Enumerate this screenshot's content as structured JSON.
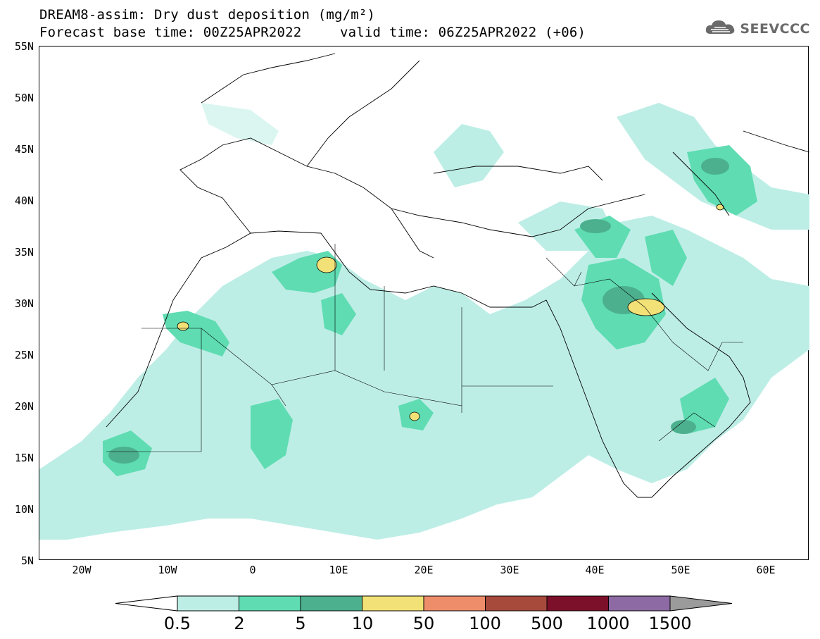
{
  "header": {
    "title_line1": "DREAM8-assim: Dry dust deposition (mg/m²)",
    "title_line2": "Forecast base time: 00Z25APR2022",
    "title_line3": "valid time: 06Z25APR2022 (+06)",
    "logo_text": "SEEVCCC",
    "logo_icon": "cloud-icon"
  },
  "axes": {
    "lat_labels": [
      "55N",
      "50N",
      "45N",
      "40N",
      "35N",
      "30N",
      "25N",
      "20N",
      "15N",
      "10N",
      "5N"
    ],
    "lon_labels": [
      "20W",
      "10W",
      "0",
      "10E",
      "20E",
      "30E",
      "40E",
      "50E",
      "60E"
    ]
  },
  "colorbar": {
    "labels": [
      "0.5",
      "2",
      "5",
      "10",
      "50",
      "100",
      "500",
      "1000",
      "1500"
    ],
    "colors": [
      "#ffffff",
      "#bdeee6",
      "#5fdcb2",
      "#4cb08e",
      "#f2e176",
      "#ee8d6a",
      "#a74a3c",
      "#7c0f29",
      "#8d6aa3",
      "#9b9b9b"
    ]
  },
  "map": {
    "extent_lon": [
      -25,
      65
    ],
    "extent_lat": [
      5,
      55
    ],
    "field": "Dry dust deposition"
  }
}
